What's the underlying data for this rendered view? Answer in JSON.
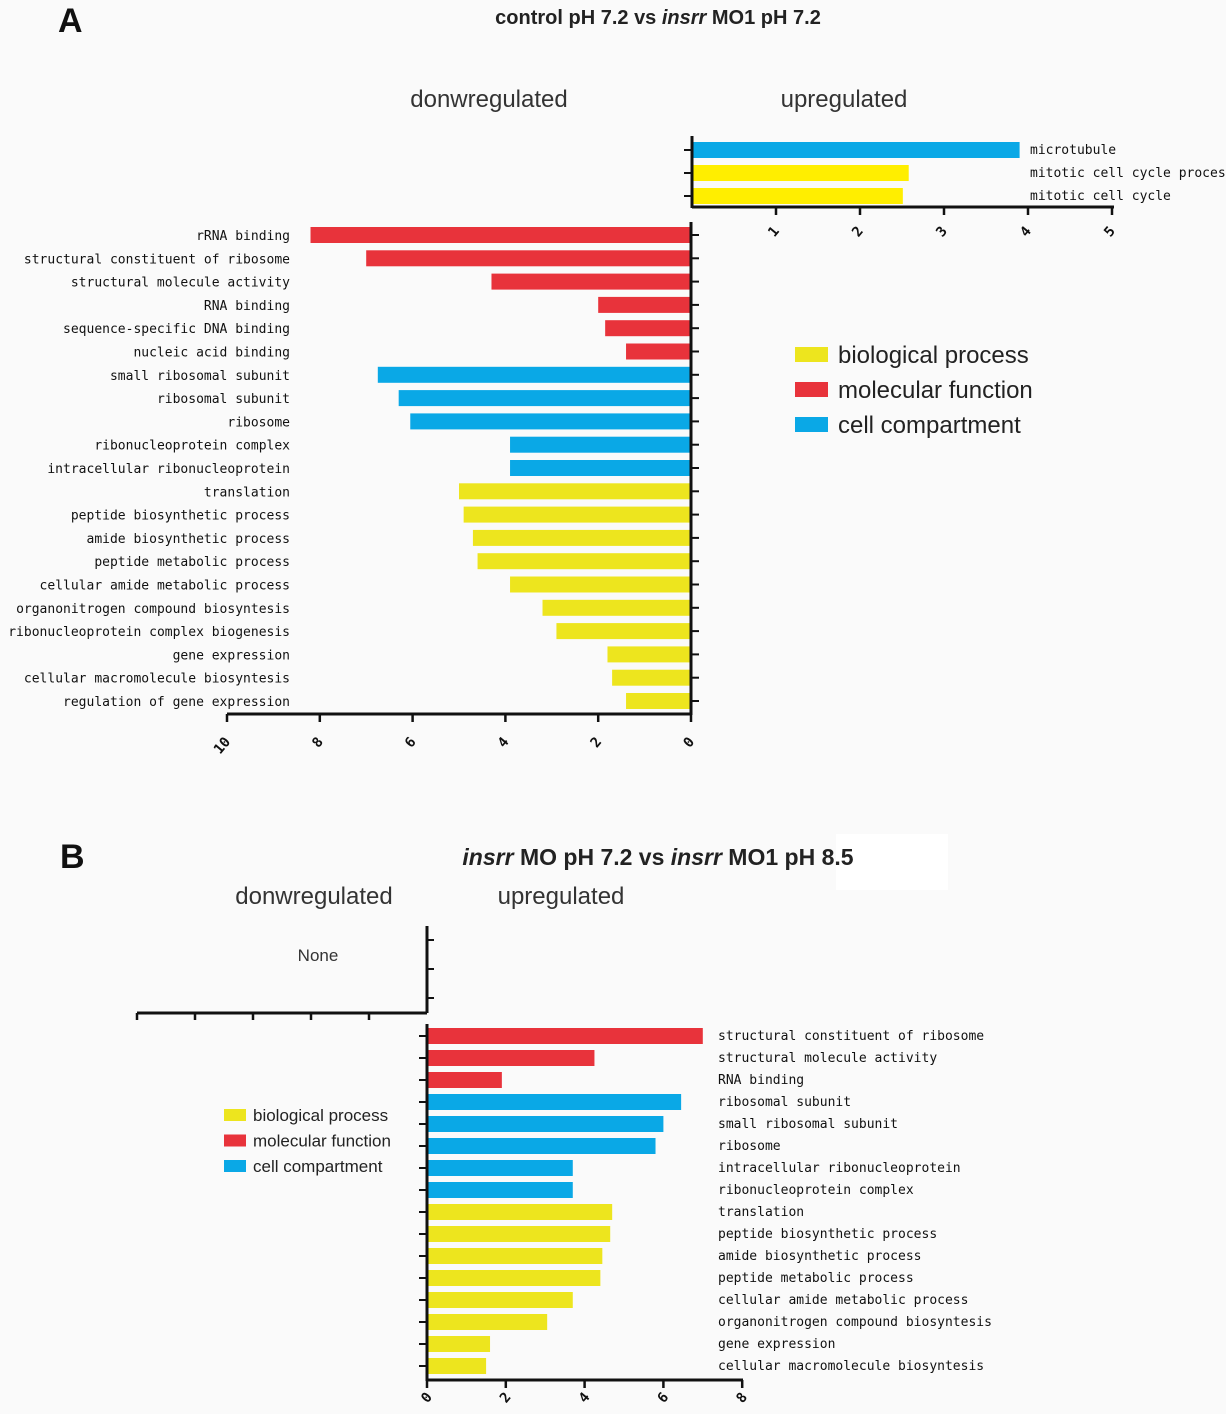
{
  "colors": {
    "biological process": "#ede51e",
    "molecular function": "#e8333b",
    "cell compartment": "#0aa8e6",
    "top_yellow": "#ffee00"
  },
  "panelA": {
    "letter": "A",
    "title": {
      "p1": "control pH 7.2 vs ",
      "p2": "insrr",
      "p3": " MO1  pH 7.2"
    },
    "down_label": "donwregulated",
    "up_label": "upregulated",
    "legend": [
      "biological process",
      "molecular function",
      "cell compartment"
    ]
  },
  "panelB": {
    "letter": "B",
    "title": {
      "p1": "insrr",
      "p2": " MO  pH 7.2  vs ",
      "p3": "insrr",
      "p4": " MO1 pH 8.5"
    },
    "down_label": "donwregulated",
    "up_label": "upregulated",
    "none_label": "None",
    "legend": [
      "biological process",
      "molecular function",
      "cell compartment"
    ]
  },
  "chart_data": [
    {
      "type": "bar",
      "orientation": "horizontal",
      "panel": "A",
      "direction": "upregulated",
      "xlim": [
        0,
        5
      ],
      "ticks": [
        "1",
        "2",
        "3",
        "4",
        "5"
      ],
      "categories": [
        "microtubule",
        "mitotic cell cycle process",
        "mitotic cell cycle"
      ],
      "values": [
        3.9,
        2.58,
        2.51
      ],
      "groups": [
        "cell compartment",
        "biological process",
        "biological process"
      ]
    },
    {
      "type": "bar",
      "orientation": "horizontal",
      "panel": "A",
      "direction": "downregulated",
      "xlim": [
        0,
        10
      ],
      "x_reversed": true,
      "ticks": [
        "10",
        "8",
        "6",
        "4",
        "2",
        "0"
      ],
      "categories": [
        "rRNA binding",
        "structural constituent of ribosome",
        "structural molecule activity",
        "RNA binding",
        "sequence-specific DNA      binding",
        "nucleic acid binding",
        "small ribosomal subunit",
        "ribosomal subunit",
        "ribosome",
        "ribonucleoprotein complex",
        "intracellular ribonucleoprotein",
        "translation",
        "peptide biosynthetic process",
        "amide biosynthetic process",
        "peptide metabolic process",
        "cellular amide metabolic process",
        "organonitrogen compound biosyntesis",
        "ribonucleoprotein complex biogenesis",
        "gene expression",
        "cellular macromolecule biosyntesis",
        "regulation of gene expression"
      ],
      "values": [
        8.2,
        7.0,
        4.3,
        2.0,
        1.85,
        1.4,
        6.75,
        6.3,
        6.05,
        3.9,
        3.9,
        5.0,
        4.9,
        4.7,
        4.6,
        3.9,
        3.2,
        2.9,
        1.8,
        1.7,
        1.4
      ],
      "groups": [
        "molecular function",
        "molecular function",
        "molecular function",
        "molecular function",
        "molecular function",
        "molecular function",
        "cell compartment",
        "cell compartment",
        "cell compartment",
        "cell compartment",
        "cell compartment",
        "biological process",
        "biological process",
        "biological process",
        "biological process",
        "biological process",
        "biological process",
        "biological process",
        "biological process",
        "biological process",
        "biological process"
      ]
    },
    {
      "type": "bar",
      "orientation": "horizontal",
      "panel": "B",
      "direction": "upregulated",
      "xlim": [
        0,
        8
      ],
      "ticks": [
        "0",
        "2",
        "4",
        "6",
        "8"
      ],
      "categories": [
        "structural constituent of ribosome",
        "structural molecule activity",
        "RNA binding",
        "ribosomal subunit",
        "small ribosomal subunit",
        "ribosome",
        "intracellular ribonucleoprotein",
        "ribonucleoprotein complex",
        "translation",
        "peptide biosynthetic process",
        "amide biosynthetic process",
        "peptide metabolic process",
        "cellular amide metabolic process",
        "organonitrogen compound biosyntesis",
        "gene expression",
        "cellular macromolecule biosyntesis"
      ],
      "values": [
        7.0,
        4.25,
        1.9,
        6.45,
        6.0,
        5.8,
        3.7,
        3.7,
        4.7,
        4.65,
        4.45,
        4.4,
        3.7,
        3.05,
        1.6,
        1.5
      ],
      "groups": [
        "molecular function",
        "molecular function",
        "molecular function",
        "cell compartment",
        "cell compartment",
        "cell compartment",
        "cell compartment",
        "cell compartment",
        "biological process",
        "biological process",
        "biological process",
        "biological process",
        "biological process",
        "biological process",
        "biological process",
        "biological process"
      ]
    },
    {
      "type": "bar",
      "orientation": "horizontal",
      "panel": "B",
      "direction": "downregulated",
      "categories": [],
      "values": []
    }
  ]
}
